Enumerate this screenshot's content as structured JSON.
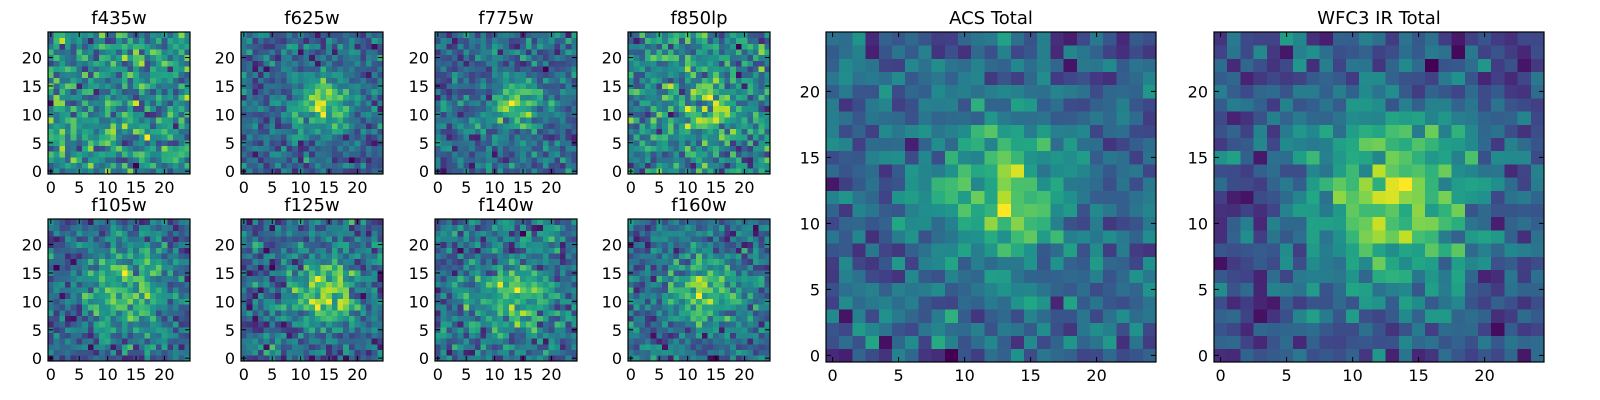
{
  "figure": {
    "background": "#ffffff"
  },
  "chart_data": [
    {
      "type": "heatmap",
      "title": "f435w",
      "grid": false,
      "colormap": "viridis",
      "size": 25,
      "xlim": [
        0,
        24
      ],
      "ylim": [
        0,
        24
      ],
      "xticks": [
        0,
        5,
        10,
        15,
        20
      ],
      "yticks": [
        0,
        5,
        10,
        15,
        20
      ],
      "peak_center": [
        12,
        12
      ],
      "peak_strength": 0.0,
      "peak_width": 4,
      "base_level": 0.6,
      "noise": 0.22,
      "seed": 11
    },
    {
      "type": "heatmap",
      "title": "f625w",
      "grid": false,
      "colormap": "viridis",
      "size": 25,
      "xlim": [
        0,
        24
      ],
      "ylim": [
        0,
        24
      ],
      "xticks": [
        0,
        5,
        10,
        15,
        20
      ],
      "yticks": [
        0,
        5,
        10,
        15,
        20
      ],
      "peak_center": [
        14,
        12
      ],
      "peak_strength": 0.42,
      "peak_width": 3.5,
      "base_level": 0.5,
      "noise": 0.16,
      "seed": 23
    },
    {
      "type": "heatmap",
      "title": "f775w",
      "grid": false,
      "colormap": "viridis",
      "size": 25,
      "xlim": [
        0,
        24
      ],
      "ylim": [
        0,
        24
      ],
      "xticks": [
        0,
        5,
        10,
        15,
        20
      ],
      "yticks": [
        0,
        5,
        10,
        15,
        20
      ],
      "peak_center": [
        14,
        12
      ],
      "peak_strength": 0.4,
      "peak_width": 3,
      "base_level": 0.5,
      "noise": 0.18,
      "seed": 37
    },
    {
      "type": "heatmap",
      "title": "f850lp",
      "grid": false,
      "colormap": "viridis",
      "size": 25,
      "xlim": [
        0,
        24
      ],
      "ylim": [
        0,
        24
      ],
      "xticks": [
        0,
        5,
        10,
        15,
        20
      ],
      "yticks": [
        0,
        5,
        10,
        15,
        20
      ],
      "peak_center": [
        14,
        11
      ],
      "peak_strength": 0.22,
      "peak_width": 3.5,
      "base_level": 0.62,
      "noise": 0.2,
      "seed": 41
    },
    {
      "type": "heatmap",
      "title": "f105w",
      "grid": false,
      "colormap": "viridis",
      "size": 25,
      "xlim": [
        0,
        24
      ],
      "ylim": [
        0,
        24
      ],
      "xticks": [
        0,
        5,
        10,
        15,
        20
      ],
      "yticks": [
        0,
        5,
        10,
        15,
        20
      ],
      "peak_center": [
        13,
        12
      ],
      "peak_strength": 0.32,
      "peak_width": 5,
      "base_level": 0.55,
      "noise": 0.16,
      "seed": 53
    },
    {
      "type": "heatmap",
      "title": "f125w",
      "grid": false,
      "colormap": "viridis",
      "size": 25,
      "xlim": [
        0,
        24
      ],
      "ylim": [
        0,
        24
      ],
      "xticks": [
        0,
        5,
        10,
        15,
        20
      ],
      "yticks": [
        0,
        5,
        10,
        15,
        20
      ],
      "peak_center": [
        14,
        12
      ],
      "peak_strength": 0.36,
      "peak_width": 4,
      "base_level": 0.5,
      "noise": 0.15,
      "seed": 67
    },
    {
      "type": "heatmap",
      "title": "f140w",
      "grid": false,
      "colormap": "viridis",
      "size": 25,
      "xlim": [
        0,
        24
      ],
      "ylim": [
        0,
        24
      ],
      "xticks": [
        0,
        5,
        10,
        15,
        20
      ],
      "yticks": [
        0,
        5,
        10,
        15,
        20
      ],
      "peak_center": [
        14,
        11
      ],
      "peak_strength": 0.3,
      "peak_width": 5,
      "base_level": 0.55,
      "noise": 0.18,
      "seed": 71
    },
    {
      "type": "heatmap",
      "title": "f160w",
      "grid": false,
      "colormap": "viridis",
      "size": 25,
      "xlim": [
        0,
        24
      ],
      "ylim": [
        0,
        24
      ],
      "xticks": [
        0,
        5,
        10,
        15,
        20
      ],
      "yticks": [
        0,
        5,
        10,
        15,
        20
      ],
      "peak_center": [
        13,
        12
      ],
      "peak_strength": 0.34,
      "peak_width": 4,
      "base_level": 0.55,
      "noise": 0.17,
      "seed": 83
    },
    {
      "type": "heatmap",
      "title": "ACS Total",
      "grid": false,
      "colormap": "viridis",
      "size": 25,
      "xlim": [
        0,
        24
      ],
      "ylim": [
        0,
        24
      ],
      "xticks": [
        0,
        5,
        10,
        15,
        20
      ],
      "yticks": [
        0,
        5,
        10,
        15,
        20
      ],
      "peak_center": [
        13,
        12
      ],
      "peak_strength": 0.38,
      "peak_width": 3.5,
      "base_level": 0.52,
      "noise": 0.13,
      "seed": 97
    },
    {
      "type": "heatmap",
      "title": "WFC3 IR Total",
      "grid": false,
      "colormap": "viridis",
      "size": 25,
      "xlim": [
        0,
        24
      ],
      "ylim": [
        0,
        24
      ],
      "xticks": [
        0,
        5,
        10,
        15,
        20
      ],
      "yticks": [
        0,
        5,
        10,
        15,
        20
      ],
      "peak_center": [
        13,
        12
      ],
      "peak_strength": 0.42,
      "peak_width": 4.5,
      "base_level": 0.47,
      "noise": 0.11,
      "seed": 109
    }
  ]
}
